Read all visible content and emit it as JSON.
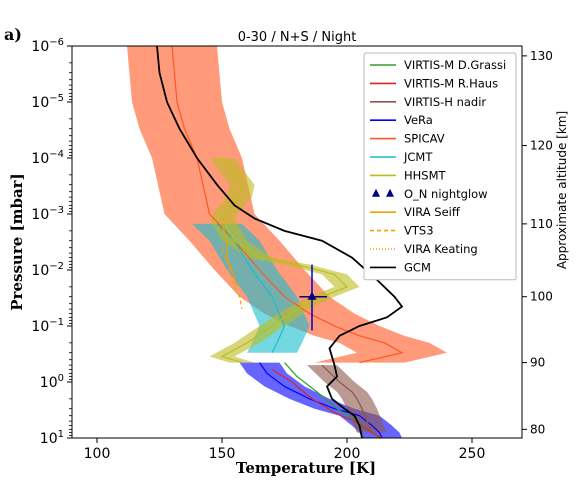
{
  "panel_label": "a)",
  "chart_data": {
    "type": "line",
    "title": "0-30 / N+S / Night",
    "xlabel": "Temperature [K]",
    "ylabel": "Pressure [mbar]",
    "y2label": "Approximate altitude [km]",
    "xlim": [
      90,
      270
    ],
    "ylim": [
      10,
      1e-06
    ],
    "yscale": "log",
    "x_ticks": [
      "100",
      "150",
      "200",
      "250"
    ],
    "x_tick_values": [
      100,
      150,
      200,
      250
    ],
    "y_tick_exponents": [
      1,
      0,
      -1,
      -2,
      -3,
      -4,
      -5,
      -6
    ],
    "y_tick_labels": [
      "10^1",
      "10^0",
      "10^-1",
      "10^-2",
      "10^-3",
      "10^-4",
      "10^-5",
      "10^-6"
    ],
    "y2_ticks": [
      "80",
      "90",
      "100",
      "110",
      "120",
      "130"
    ],
    "y2_tick_values": [
      80,
      90,
      100,
      110,
      120,
      130
    ],
    "altitude_pressure_map": [
      [
        80,
        7
      ],
      [
        90,
        0.45
      ],
      [
        100,
        0.03
      ],
      [
        110,
        0.0015
      ],
      [
        120,
        6e-05
      ],
      [
        130,
        1.5e-06
      ]
    ],
    "legend_position": "top-right",
    "legend": [
      {
        "label": "VIRTIS-M D.Grassi",
        "color": "#2ca02c",
        "style": "line"
      },
      {
        "label": "VIRTIS-M R.Haus",
        "color": "#d62728",
        "style": "line"
      },
      {
        "label": "VIRTIS-H nadir",
        "color": "#8c564b",
        "style": "line"
      },
      {
        "label": "VeRa",
        "color": "#0000ff",
        "style": "line"
      },
      {
        "label": "SPICAV",
        "color": "#ff5722",
        "style": "line"
      },
      {
        "label": "JCMT",
        "color": "#17becf",
        "style": "line"
      },
      {
        "label": "HHSMT",
        "color": "#bcbd22",
        "style": "line"
      },
      {
        "label": "O_N  nightglow",
        "color": "#000080",
        "style": "triangles"
      },
      {
        "label": "VIRA Seiff",
        "color": "#f0a000",
        "style": "line"
      },
      {
        "label": "VTS3",
        "color": "#f0a000",
        "style": "dashed"
      },
      {
        "label": "VIRA Keating",
        "color": "#f0a000",
        "style": "dotted"
      },
      {
        "label": "GCM",
        "color": "#000000",
        "style": "line"
      }
    ],
    "series": [
      {
        "name": "GCM",
        "color": "#000000",
        "points": [
          [
            124,
            1e-06
          ],
          [
            125,
            3e-06
          ],
          [
            128,
            1e-05
          ],
          [
            133,
            3e-05
          ],
          [
            140,
            0.0001
          ],
          [
            148,
            0.0003
          ],
          [
            155,
            0.0007
          ],
          [
            163,
            0.0012
          ],
          [
            175,
            0.002
          ],
          [
            190,
            0.003
          ],
          [
            202,
            0.006
          ],
          [
            212,
            0.015
          ],
          [
            219,
            0.03
          ],
          [
            222,
            0.045
          ],
          [
            216,
            0.07
          ],
          [
            205,
            0.1
          ],
          [
            197,
            0.15
          ],
          [
            193,
            0.25
          ],
          [
            195,
            0.5
          ],
          [
            196,
            0.8
          ],
          [
            192,
            1.2
          ],
          [
            194,
            2
          ],
          [
            199,
            3
          ],
          [
            203,
            4
          ],
          [
            205,
            6
          ],
          [
            206,
            10
          ]
        ]
      },
      {
        "name": "SPICAV",
        "color": "#ff5722",
        "points": [
          [
            130,
            1e-06
          ],
          [
            132,
            1e-05
          ],
          [
            135,
            3e-05
          ],
          [
            140,
            0.0001
          ],
          [
            145,
            0.001
          ],
          [
            155,
            0.003
          ],
          [
            165,
            0.01
          ],
          [
            175,
            0.03
          ],
          [
            185,
            0.06
          ],
          [
            195,
            0.1
          ],
          [
            205,
            0.15
          ],
          [
            215,
            0.2
          ],
          [
            222,
            0.3
          ],
          [
            205,
            0.45
          ]
        ]
      },
      {
        "name": "JCMT",
        "color": "#17becf",
        "points": [
          [
            148,
            0.0015
          ],
          [
            155,
            0.003
          ],
          [
            162,
            0.01
          ],
          [
            170,
            0.03
          ],
          [
            175,
            0.1
          ],
          [
            172,
            0.2
          ],
          [
            170,
            0.3
          ]
        ]
      },
      {
        "name": "HHSMT",
        "color": "#bcbd22",
        "points": [
          [
            150,
            0.0001
          ],
          [
            155,
            0.0002
          ],
          [
            158,
            0.0003
          ],
          [
            157,
            0.0005
          ],
          [
            153,
            0.0008
          ],
          [
            150,
            0.0012
          ],
          [
            155,
            0.003
          ],
          [
            165,
            0.006
          ],
          [
            180,
            0.008
          ],
          [
            195,
            0.012
          ],
          [
            200,
            0.02
          ],
          [
            190,
            0.03
          ],
          [
            180,
            0.05
          ],
          [
            170,
            0.1
          ],
          [
            160,
            0.2
          ],
          [
            150,
            0.35
          ],
          [
            158,
            0.45
          ]
        ]
      },
      {
        "name": "VIRA Seiff",
        "color": "#f0a000",
        "points": [
          [
            150,
            0.0015
          ],
          [
            152,
            0.003
          ],
          [
            152,
            0.006
          ],
          [
            154,
            0.01
          ],
          [
            156,
            0.02
          ]
        ]
      },
      {
        "name": "VTS3",
        "color": "#f0a000",
        "points": [
          [
            150,
            0.004
          ],
          [
            153,
            0.01
          ],
          [
            155,
            0.02
          ],
          [
            157,
            0.03
          ],
          [
            158,
            0.05
          ]
        ]
      },
      {
        "name": "VeRa",
        "color": "#0000ff",
        "points": [
          [
            165,
            0.45
          ],
          [
            168,
            0.7
          ],
          [
            175,
            1.2
          ],
          [
            185,
            2
          ],
          [
            195,
            3
          ],
          [
            205,
            4
          ],
          [
            210,
            6
          ],
          [
            213,
            8
          ],
          [
            214,
            10
          ]
        ]
      },
      {
        "name": "VIRTIS-M D.Grassi",
        "color": "#2ca02c",
        "points": [
          [
            175,
            0.45
          ],
          [
            180,
            0.8
          ],
          [
            188,
            1.5
          ],
          [
            196,
            3
          ],
          [
            204,
            5
          ],
          [
            210,
            8
          ],
          [
            213,
            10
          ]
        ]
      },
      {
        "name": "VIRTIS-M R.Haus",
        "color": "#d62728",
        "points": [
          [
            170,
            0.6
          ],
          [
            178,
            1
          ],
          [
            186,
            2
          ],
          [
            195,
            3.5
          ],
          [
            203,
            5
          ],
          [
            210,
            8
          ],
          [
            214,
            10
          ]
        ]
      },
      {
        "name": "VIRTIS-H nadir",
        "color": "#8c564b",
        "points": [
          [
            190,
            0.5
          ],
          [
            197,
            1
          ],
          [
            202,
            1.5
          ],
          [
            204,
            2
          ],
          [
            206,
            3
          ],
          [
            208,
            5
          ],
          [
            210,
            8
          ]
        ]
      }
    ],
    "nightglow_point": {
      "temperature": 186,
      "pressure": 0.03,
      "temp_err": [
        181,
        192
      ],
      "pressure_err": [
        0.008,
        0.12
      ]
    },
    "bands": [
      {
        "name": "SPICAV",
        "color": "#ff5722"
      },
      {
        "name": "JCMT",
        "color": "#17becf"
      },
      {
        "name": "HHSMT",
        "color": "#bcbd22"
      },
      {
        "name": "VeRa",
        "color": "#0000ff"
      },
      {
        "name": "VIRTIS-H nadir",
        "color": "#8c564b"
      }
    ]
  }
}
